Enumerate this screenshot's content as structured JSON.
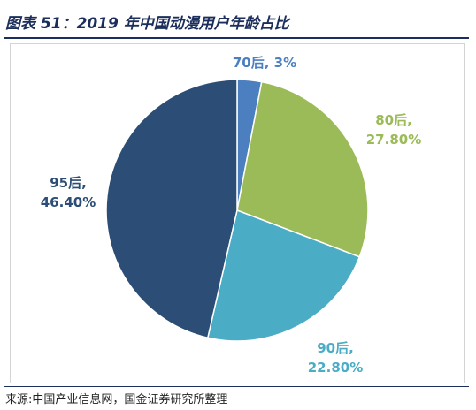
{
  "page": {
    "title": "图表 51：2019 年中国动漫用户年龄占比",
    "source": "来源:中国产业信息网，国金证券研究所整理"
  },
  "chart_data": {
    "type": "pie",
    "title": "",
    "slices": [
      {
        "category": "70后",
        "value": 3.0,
        "label": "70后, 3%",
        "line1": "70后, 3%",
        "line2": "",
        "color": "#4b7fc0"
      },
      {
        "category": "80后",
        "value": 27.8,
        "label": "80后, 27.80%",
        "line1": "80后,",
        "line2": "27.80%",
        "color": "#9bbb59"
      },
      {
        "category": "90后",
        "value": 22.8,
        "label": "90后, 22.80%",
        "line1": "90后,",
        "line2": "22.80%",
        "color": "#4bacc6"
      },
      {
        "category": "95后",
        "value": 46.4,
        "label": "95后, 46.40%",
        "line1": "95后,",
        "line2": "46.40%",
        "color": "#2c4d75"
      }
    ],
    "legend": "none",
    "data_labels": "outside"
  }
}
